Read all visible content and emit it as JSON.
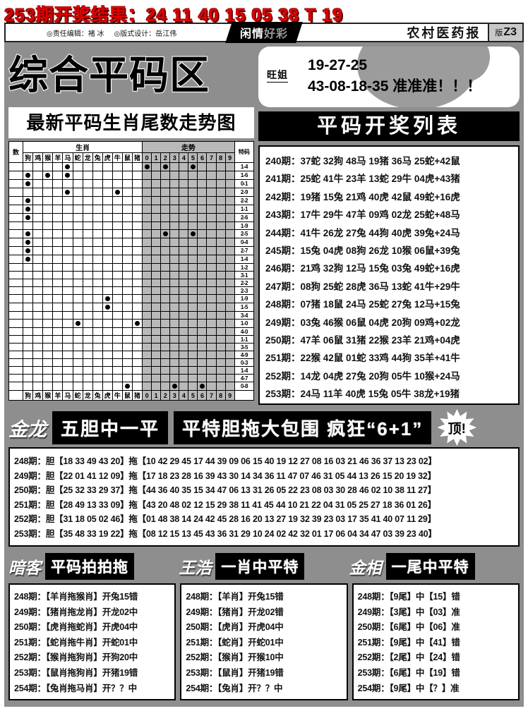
{
  "top_banner": {
    "text": "253期开奖结果：24 11 40 15 05 38 T 19"
  },
  "masthead": {
    "credit_editor": "◎责任编辑：褚 冰",
    "credit_designer": "◎版式设计：岳江伟",
    "ribbon_part1": "闲情",
    "ribbon_part2": "好彩",
    "paper_name": "农村医药报",
    "edition_prefix": "版",
    "edition_code": "Z3"
  },
  "left_section": {
    "title": "综合平码区",
    "subtitle": "最新平码生肖尾数走势图",
    "chart": {
      "corner_label": "数",
      "group_zodiac": "生肖",
      "group_trend": "走势",
      "special_header": "特码",
      "zodiac_columns": [
        "狗",
        "鸡",
        "猴",
        "羊",
        "马",
        "蛇",
        "龙",
        "兔",
        "虎",
        "牛",
        "鼠",
        "猪"
      ],
      "digit_columns": [
        "0",
        "1",
        "2",
        "3",
        "4",
        "5",
        "6",
        "7",
        "8",
        "9"
      ],
      "rows": [
        {
          "label": "1-4",
          "zodiac": [
            "马"
          ],
          "digits": [
            "0",
            "2",
            "5"
          ]
        },
        {
          "label": "1-6",
          "zodiac": [
            "狗",
            "猴",
            "马"
          ],
          "digits": []
        },
        {
          "label": "0-1",
          "zodiac": [
            "狗"
          ],
          "digits": []
        },
        {
          "label": "2-9",
          "zodiac": [
            "马",
            "牛"
          ],
          "digits": []
        },
        {
          "label": "2-2",
          "zodiac": [
            "狗"
          ],
          "digits": []
        },
        {
          "label": "1-1",
          "zodiac": [
            "狗"
          ],
          "digits": []
        },
        {
          "label": "2-6",
          "zodiac": [
            "狗"
          ],
          "digits": []
        },
        {
          "label": "1-9",
          "zodiac": [],
          "digits": []
        },
        {
          "label": "2-5",
          "zodiac": [
            "狗"
          ],
          "digits": [
            "2",
            "5"
          ]
        },
        {
          "label": "0-4",
          "zodiac": [
            "狗"
          ],
          "digits": []
        },
        {
          "label": "2-7",
          "zodiac": [
            "狗"
          ],
          "digits": []
        },
        {
          "label": "1-4",
          "zodiac": [
            "狗"
          ],
          "digits": []
        },
        {
          "label": "1-2",
          "zodiac": [],
          "digits": []
        },
        {
          "label": "3-1",
          "zodiac": [],
          "digits": []
        },
        {
          "label": "2-2",
          "zodiac": [],
          "digits": []
        },
        {
          "label": "2-3",
          "zodiac": [],
          "digits": []
        },
        {
          "label": "1-9",
          "zodiac": [
            "虎"
          ],
          "digits": []
        },
        {
          "label": "1-5",
          "zodiac": [
            "虎"
          ],
          "digits": []
        },
        {
          "label": "3-4",
          "zodiac": [],
          "digits": []
        },
        {
          "label": "1-0",
          "zodiac": [
            "蛇",
            "猪"
          ],
          "digits": []
        },
        {
          "label": "4-0",
          "zodiac": [],
          "digits": []
        },
        {
          "label": "1-1",
          "zodiac": [],
          "digits": []
        },
        {
          "label": "3-5",
          "zodiac": [],
          "digits": []
        },
        {
          "label": "4-9",
          "zodiac": [],
          "digits": []
        },
        {
          "label": "0-3",
          "zodiac": [],
          "digits": []
        },
        {
          "label": "1-4",
          "zodiac": [],
          "digits": []
        },
        {
          "label": "4-7",
          "zodiac": [],
          "digits": []
        },
        {
          "label": "0-8",
          "zodiac": [
            "鼠"
          ],
          "digits": [
            "3",
            "6"
          ]
        }
      ]
    }
  },
  "right_section": {
    "tip_box": {
      "author": "旺姐",
      "line1": "19-27-25",
      "line2": "43-08-18-35 准准准！！！"
    },
    "list_title": "平码开奖列表",
    "results": [
      "240期：37蛇 32狗 48马 19猪 36马 25蛇+42鼠",
      "241期：25蛇 41牛 23羊 13蛇 29牛 04虎+43猪",
      "242期：19猪 15兔 21鸡 40虎 42鼠 49蛇+16虎",
      "243期：17牛 29牛 47羊 09鸡 02龙 25蛇+48马",
      "244期：41牛 26龙 27兔 44狗 40虎 39兔+24马",
      "245期：15兔 04虎 08狗 26龙 10猴 06鼠+39兔",
      "246期：21鸡 32狗 12马 15兔 03兔 49蛇+16虎",
      "247期：08狗 25蛇 28虎 36马 13蛇 41牛+29牛",
      "248期：07猪 18鼠 24马 25蛇 27兔 12马+15兔",
      "249期：03兔 46猴 06鼠 04虎 20狗 09鸡+02龙",
      "250期：47羊 06鼠 31猪 22猴 23羊 21鸡+04虎",
      "251期：22猴 42鼠 01蛇 33鸡 44狗 35羊+41牛",
      "252期：14龙 04虎 27兔 20狗 05牛 10猴+24马",
      "253期：24马 11羊 40虎 15兔 05牛 38龙+19猪"
    ]
  },
  "dantuo_section": {
    "author": "金龙",
    "banner_left": "五胆中一平",
    "banner_right": "平特胆拖大包围 疯狂“6+1”",
    "burst": "顶!",
    "rows": [
      "248期：胆【18 33 49 43 20】拖【10 42 29 45 17 44 39 09 06 15 40 19 12 27 08 16 03 21 46 36 37 13 23 02】",
      "249期：胆【22 01 41 12 09】拖【17 18 23 28 16 39 43 30 14 34 36 11 47 07 46 31 05 44 13 26 15 20 19 32】",
      "250期：胆【25 32 33 29 37】拖【44 36 40 35 15 34 47 06 13 31 26 05 22 23 08 03 30 28 46 02 10 38 11 27】",
      "251期：胆【28 49 13 33 09】拖【43 20 48 02 12 15 29 38 11 41 45 44 10 21 22 04 31 05 25 27 18 36 01 26】",
      "252期：胆【31 18 05 02 46】拖【01 48 38 14 24 42 45 28 16 20 13 27 19 32 39 23 03 17 35 41 40 07 11 29】",
      "253期：胆【35 48 33 19 22】拖【08 12 15 13 45 43 36 31 29 10 24 02 42 32 01 17 06 04 34 47 03 39 23 40】"
    ]
  },
  "bottom_section": {
    "columns": [
      {
        "author": "暗客",
        "title": "平码拍拍拖",
        "rows": [
          "248期：【羊肖拖猴肖】开兔15错",
          "249期：【猪肖拖龙肖】开龙02中",
          "250期：【虎肖拖蛇肖】开虎04中",
          "251期：【蛇肖拖牛肖】开蛇01中",
          "252期：【猴肖拖狗肖】开狗20中",
          "253期：【鼠肖拖狗肖】开猪19错",
          "254期：【兔肖拖马肖】开？？中"
        ]
      },
      {
        "author": "王浩",
        "title": "一肖中平特",
        "rows": [
          "248期：【羊肖】开兔15错",
          "249期：【猪肖】开龙02错",
          "250期：【虎肖】开虎04中",
          "251期：【蛇肖】开蛇01中",
          "252期：【猴肖】开猴10中",
          "253期：【鼠肖】开猪19错",
          "254期：【兔肖】开？？中"
        ]
      },
      {
        "author": "金相",
        "title": "一尾中平特",
        "rows": [
          "248期：【9尾】中【15】错",
          "249期：【3尾】中【03】准",
          "250期：【6尾】中【06】准",
          "251期：【9尾】中【41】错",
          "252期：【2尾】中【24】错",
          "253期：【6尾】中【19】错",
          "254期：【9尾】中【？】准"
        ]
      }
    ]
  },
  "colors": {
    "page_bg": "#8e8e8e",
    "accent_red": "#e00000",
    "shade_gray": "#b9b9b9"
  }
}
